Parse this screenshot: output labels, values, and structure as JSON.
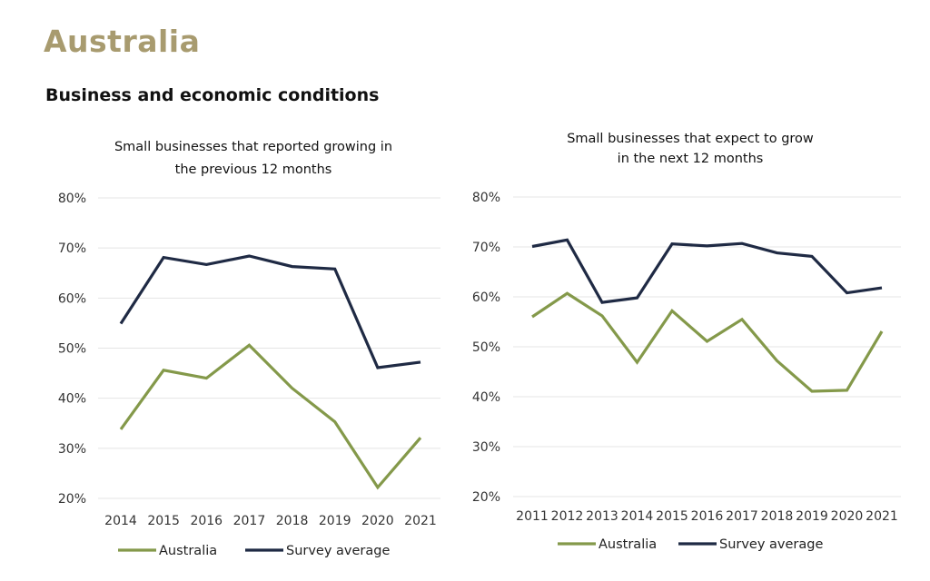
{
  "page": {
    "title": "Australia",
    "section_title": "Business and economic conditions"
  },
  "colors": {
    "title": "#a89b6f",
    "australia": "#84994a",
    "survey_average": "#1f2a44",
    "grid": "#e4e4e4"
  },
  "chart_data": [
    {
      "type": "line",
      "title_lines": [
        "Small businesses that reported growing in",
        "the previous 12 months"
      ],
      "x": [
        "2014",
        "2015",
        "2016",
        "2017",
        "2018",
        "2019",
        "2020",
        "2021"
      ],
      "ylim": [
        0.2,
        0.8
      ],
      "yticks": [
        "80%",
        "70%",
        "60%",
        "50%",
        "40%",
        "30%",
        "20%"
      ],
      "grid": true,
      "legend_placement": "bottom",
      "series": [
        {
          "name": "Australia",
          "color": "#84994a",
          "values": [
            0.338,
            0.456,
            0.44,
            0.506,
            0.42,
            0.353,
            0.222,
            0.321
          ]
        },
        {
          "name": "Survey average",
          "color": "#1f2a44",
          "values": [
            0.549,
            0.681,
            0.667,
            0.684,
            0.663,
            0.658,
            0.461,
            0.472
          ]
        }
      ]
    },
    {
      "type": "line",
      "title_lines": [
        "Small businesses that expect to grow",
        "in the next 12 months"
      ],
      "x": [
        "2011",
        "2012",
        "2013",
        "2014",
        "2015",
        "2016",
        "2017",
        "2018",
        "2019",
        "2020",
        "2021"
      ],
      "ylim": [
        0.2,
        0.8
      ],
      "yticks": [
        "80%",
        "70%",
        "60%",
        "50%",
        "40%",
        "30%",
        "20%"
      ],
      "grid": true,
      "legend_placement": "bottom",
      "series": [
        {
          "name": "Australia",
          "color": "#84994a",
          "values": [
            0.56,
            0.607,
            0.562,
            0.469,
            0.572,
            0.511,
            0.555,
            0.472,
            0.411,
            0.413,
            0.531
          ]
        },
        {
          "name": "Survey average",
          "color": "#1f2a44",
          "values": [
            0.701,
            0.714,
            0.589,
            0.598,
            0.706,
            0.702,
            0.707,
            0.688,
            0.681,
            0.608,
            0.618
          ]
        }
      ]
    }
  ]
}
